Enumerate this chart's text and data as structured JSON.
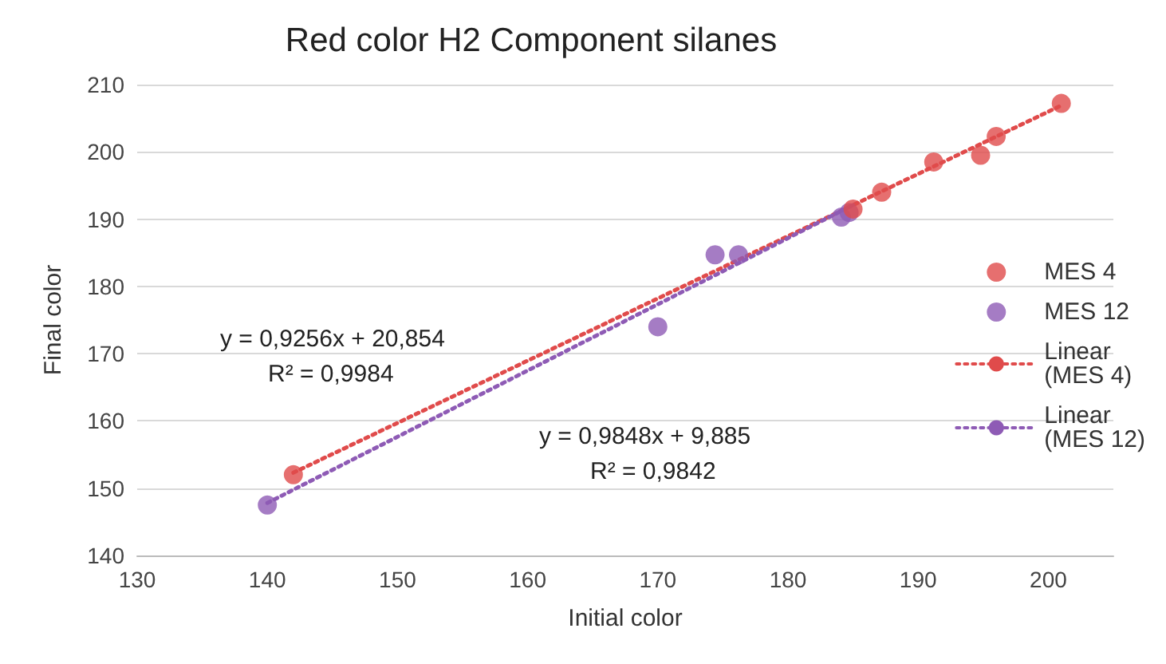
{
  "chart_data": {
    "type": "scatter",
    "title": "Red color H2 Component silanes",
    "xlabel": "Initial color",
    "ylabel": "Final color",
    "xlim": [
      130,
      205
    ],
    "xticks": [
      130,
      140,
      150,
      160,
      170,
      180,
      190,
      200
    ],
    "ylim": [
      140,
      210
    ],
    "yticks": [
      140,
      150,
      160,
      170,
      180,
      190,
      200,
      210
    ],
    "grid": "y",
    "legend": "right",
    "marker": "circle",
    "series": [
      {
        "name": "MES 4",
        "color": "#e04b4b",
        "x": [
          142,
          185,
          187.2,
          191.2,
          194.8,
          196,
          201
        ],
        "values": [
          152,
          191.5,
          194,
          198.5,
          199.5,
          202.3,
          207.2
        ]
      },
      {
        "name": "MES 12",
        "color": "#8e5bb5",
        "x": [
          140,
          170,
          174.4,
          176.2,
          184.1,
          184.7
        ],
        "values": [
          147.5,
          174,
          184.7,
          184.7,
          190.3,
          191
        ]
      },
      {
        "name": "Linear (MES 4)",
        "type": "line",
        "marker": "none",
        "line_style": "dotted",
        "color": "#e04b4b",
        "x": [
          142,
          201
        ],
        "values": [
          152.3,
          206.9
        ]
      },
      {
        "name": "Linear (MES 12)",
        "type": "line",
        "marker": "none",
        "line_style": "dotted",
        "color": "#8e5bb5",
        "x": [
          140,
          185
        ],
        "values": [
          147.8,
          192.1
        ]
      }
    ],
    "annotations": [
      "y = 0,9256x + 20,854",
      "R² = 0,9984",
      "y = 0,9848x + 9,885",
      "R² = 0,9842"
    ]
  }
}
